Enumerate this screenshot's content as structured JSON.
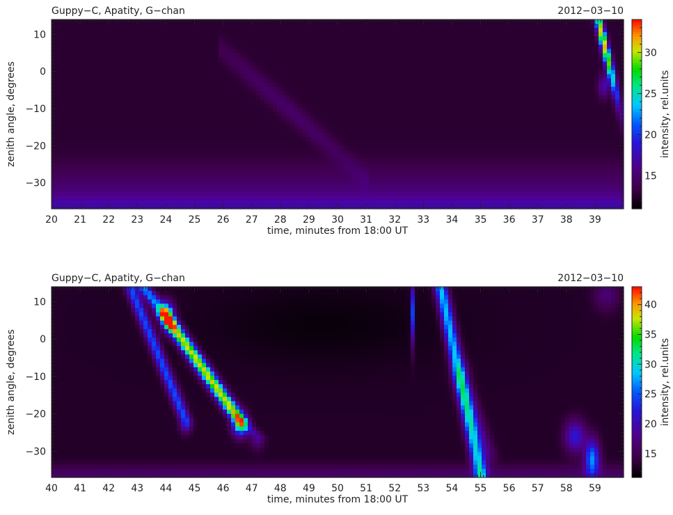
{
  "chart_data": [
    {
      "type": "heatmap",
      "title_left": "Guppy−C, Apatity, G−chan",
      "title_right": "2012−03−10",
      "xlabel": "time, minutes from 18:00 UT",
      "ylabel": "zenith angle, degrees",
      "colorbar_label": "intensity, rel.units",
      "xlim": [
        20,
        40
      ],
      "ylim": [
        -37,
        14
      ],
      "x_ticks": [
        "20",
        "21",
        "22",
        "23",
        "24",
        "25",
        "26",
        "27",
        "28",
        "29",
        "30",
        "31",
        "32",
        "33",
        "34",
        "35",
        "36",
        "37",
        "38",
        "39"
      ],
      "y_ticks": [
        "10",
        "0",
        "−10",
        "−20",
        "−30"
      ],
      "y_tick_values": [
        10,
        0,
        -10,
        -20,
        -30
      ],
      "colorbar_range": [
        11,
        34
      ],
      "colorbar_ticks": [
        "15",
        "20",
        "25",
        "30"
      ],
      "colorbar_tick_values": [
        15,
        20,
        25,
        30
      ],
      "features": [
        {
          "x": [
            38.6,
            39.8
          ],
          "y": [
            -4,
            14
          ],
          "peak": 34,
          "note": "bright arc top-right"
        },
        {
          "x": [
            26.5,
            30.0
          ],
          "y": [
            -22,
            2
          ],
          "peak": 15,
          "note": "faint diagonal band"
        },
        {
          "x": [
            20,
            40
          ],
          "y": [
            -37,
            -30
          ],
          "peak": 17,
          "note": "bright low-elevation band"
        }
      ]
    },
    {
      "type": "heatmap",
      "title_left": "Guppy−C, Apatity, G−chan",
      "title_right": "2012−03−10",
      "xlabel": "time, minutes from 18:00 UT",
      "ylabel": "zenith angle, degrees",
      "colorbar_label": "intensity, rel.units",
      "xlim": [
        40,
        60
      ],
      "ylim": [
        -37,
        14
      ],
      "x_ticks": [
        "40",
        "41",
        "42",
        "43",
        "44",
        "45",
        "46",
        "47",
        "48",
        "49",
        "50",
        "51",
        "52",
        "53",
        "54",
        "55",
        "56",
        "57",
        "58",
        "59"
      ],
      "y_ticks": [
        "10",
        "0",
        "−10",
        "−20",
        "−30"
      ],
      "y_tick_values": [
        10,
        0,
        -10,
        -20,
        -30
      ],
      "colorbar_range": [
        11,
        43
      ],
      "colorbar_ticks": [
        "15",
        "20",
        "25",
        "30",
        "35",
        "40"
      ],
      "colorbar_tick_values": [
        15,
        20,
        25,
        30,
        35,
        40
      ],
      "features": [
        {
          "x": [
            43.0,
            46.8
          ],
          "y": [
            -25,
            14
          ],
          "peak": 43,
          "note": "main bright diagonal arc"
        },
        {
          "x": [
            42.5,
            44.8
          ],
          "y": [
            -22,
            14
          ],
          "peak": 30,
          "note": "second diagonal arc"
        },
        {
          "x": [
            52.5,
            52.7
          ],
          "y": [
            0,
            14
          ],
          "peak": 25,
          "note": "thin vertical streak"
        },
        {
          "x": [
            53.6,
            55.3
          ],
          "y": [
            -37,
            14
          ],
          "peak": 32,
          "note": "diagonal arc"
        },
        {
          "x": [
            58.0,
            59.2
          ],
          "y": [
            -37,
            -22
          ],
          "peak": 30,
          "note": "lower-right patches"
        }
      ]
    }
  ]
}
